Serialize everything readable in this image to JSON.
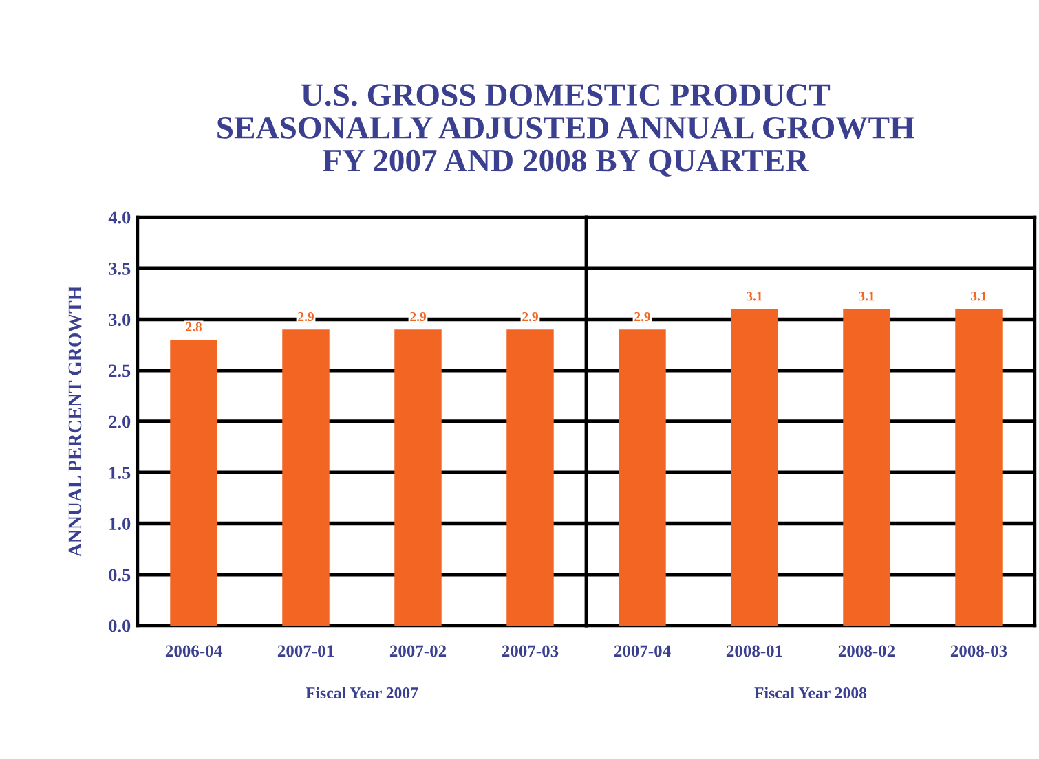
{
  "chart_data": [
    {
      "type": "bar",
      "title": "U.S. GROSS DOMESTIC PRODUCT\nSEASONALLY ADJUSTED ANNUAL GROWTH\nFY 2007 AND 2008 BY QUARTER",
      "ylabel": "ANNUAL PERCENT GROWTH",
      "xlabel": "Fiscal Year 2007",
      "categories": [
        "2006-04",
        "2007-01",
        "2007-02",
        "2007-03"
      ],
      "values": [
        2.8,
        2.9,
        2.9,
        2.9
      ],
      "color": "#f26522",
      "data_labels": true,
      "ylim": [
        0,
        4
      ],
      "yticks": [
        "0.0",
        "0.5",
        "1.0",
        "1.5",
        "2.0",
        "2.5",
        "3.0",
        "3.5",
        "4.0"
      ],
      "grid": "y"
    },
    {
      "type": "bar",
      "xlabel": "Fiscal Year 2008",
      "categories": [
        "2007-04",
        "2008-01",
        "2008-02",
        "2008-03"
      ],
      "values": [
        2.9,
        3.1,
        3.1,
        3.1
      ],
      "color": "#f26522",
      "data_labels": true,
      "ylim": [
        0,
        4
      ],
      "yticks": [
        {
          "value": 0,
          "label": null
        },
        {
          "value": 0.5,
          "label": null
        },
        {
          "value": 1,
          "label": null
        },
        {
          "value": 1.5,
          "label": null
        },
        {
          "value": 2,
          "label": null
        },
        {
          "value": 2.5,
          "label": null
        },
        {
          "value": 3,
          "label": null
        },
        {
          "value": 3.5,
          "label": null
        },
        {
          "value": 4,
          "label": null
        }
      ],
      "grid": "y",
      "tick_labels": "x"
    }
  ]
}
